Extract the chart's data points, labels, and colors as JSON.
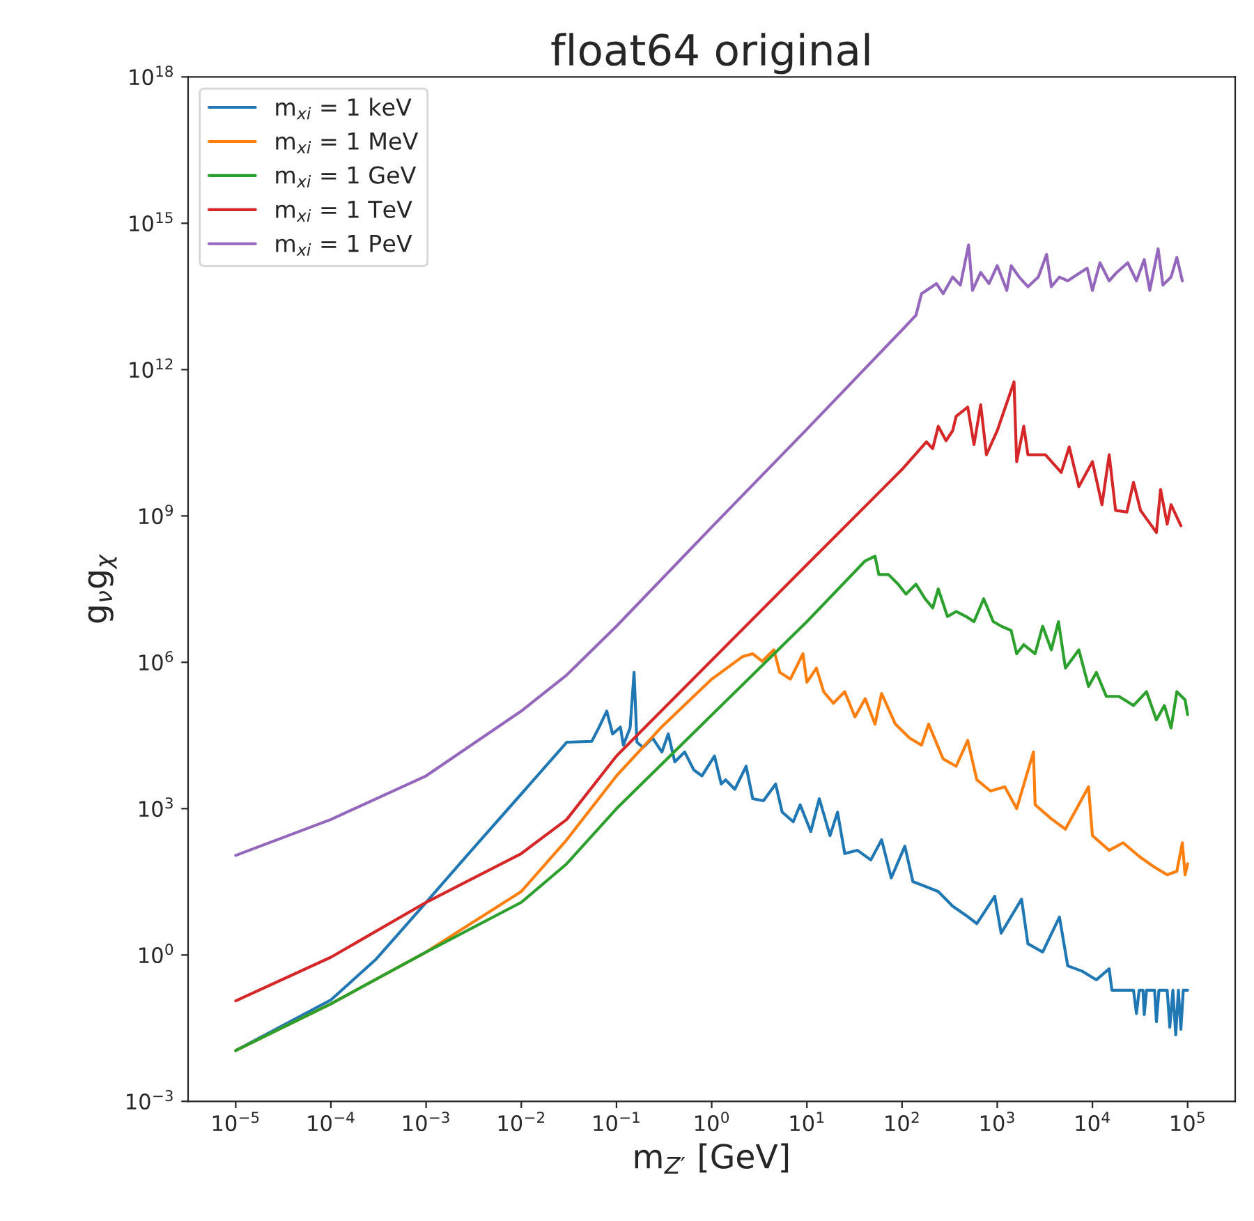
{
  "chart_data": {
    "type": "line",
    "title": "float64 original",
    "xlabel": "m$_{Z′}$ [GeV]",
    "ylabel": "g$_{ν}$g$_{χ}$",
    "log": "xy",
    "grid": false,
    "legend": "top left",
    "marker": "none",
    "line_style": "solid",
    "xlim": [
      3.16e-06,
      316000.0
    ],
    "ylim": [
      0.001,
      1e+18
    ],
    "xticks": [
      {
        "value": 1e-05,
        "label": "10$^{−5}$"
      },
      {
        "value": 0.0001,
        "label": "10$^{−4}$"
      },
      {
        "value": 0.001,
        "label": "10$^{−3}$"
      },
      {
        "value": 0.01,
        "label": "10$^{−2}$"
      },
      {
        "value": 0.1,
        "label": "10$^{−1}$"
      },
      {
        "value": 1,
        "label": "10$^{0}$"
      },
      {
        "value": 10,
        "label": "10$^{1}$"
      },
      {
        "value": 100,
        "label": "10$^{2}$"
      },
      {
        "value": 1000,
        "label": "10$^{3}$"
      },
      {
        "value": 10000,
        "label": "10$^{4}$"
      },
      {
        "value": 100000,
        "label": "10$^{5}$"
      }
    ],
    "yticks": [
      {
        "value": 0.001,
        "label": "10$^{−3}$"
      },
      {
        "value": 1,
        "label": "10$^{0}$"
      },
      {
        "value": 1000.0,
        "label": "10$^{3}$"
      },
      {
        "value": 1000000.0,
        "label": "10$^{6}$"
      },
      {
        "value": 1000000000.0,
        "label": "10$^{9}$"
      },
      {
        "value": 1000000000000.0,
        "label": "10$^{12}$"
      },
      {
        "value": 1000000000000000.0,
        "label": "10$^{15}$"
      },
      {
        "value": 1e+18,
        "label": "10$^{18}$"
      }
    ],
    "series": [
      {
        "name": "m$_{xi}$ = 1 keV",
        "color": "#1f77b4",
        "x": [
          1e-05,
          0.0001,
          0.0003,
          0.001,
          0.003,
          0.01,
          0.03,
          0.055,
          0.065,
          0.079,
          0.091,
          0.11,
          0.118,
          0.139,
          0.153,
          0.164,
          0.19,
          0.24,
          0.3,
          0.35,
          0.41,
          0.52,
          0.65,
          0.79,
          1.07,
          1.26,
          1.4,
          1.75,
          2.3,
          2.7,
          3.5,
          4.7,
          5.5,
          7.2,
          8.5,
          11,
          13.5,
          17.5,
          21,
          25,
          34,
          47,
          61,
          77,
          107,
          130,
          190,
          240,
          340,
          470,
          610,
          940,
          1100,
          1800,
          2100,
          3000,
          4500,
          5500,
          7900,
          11000,
          15000,
          16000,
          27000,
          29000,
          31000,
          34000,
          35000,
          37000,
          45000,
          47000,
          50000,
          61000,
          65000,
          70000,
          75000,
          80000,
          85000,
          90000,
          100000
        ],
        "values": [
          0.011,
          0.12,
          0.83,
          12,
          140,
          2000,
          23000,
          24000,
          45000,
          100000,
          34000,
          47000,
          20000,
          45000,
          620000,
          23000,
          18000,
          28000,
          14500,
          34000,
          9100,
          14500,
          6200,
          4700,
          12000,
          3200,
          3900,
          2500,
          7400,
          1600,
          1450,
          3200,
          850,
          540,
          1200,
          340,
          1600,
          280,
          850,
          120,
          140,
          89,
          230,
          38,
          170,
          32,
          24,
          20,
          10,
          6.5,
          4.4,
          16,
          2.8,
          14,
          1.7,
          1.15,
          6,
          0.6,
          0.46,
          0.31,
          0.52,
          0.19,
          0.19,
          0.063,
          0.19,
          0.19,
          0.06,
          0.19,
          0.19,
          0.043,
          0.19,
          0.19,
          0.033,
          0.19,
          0.023,
          0.19,
          0.03,
          0.19,
          0.19
        ]
      },
      {
        "name": "m$_{xi}$ = 1 MeV",
        "color": "#ff7f0e",
        "x": [
          1e-05,
          0.0001,
          0.001,
          0.01,
          0.03,
          0.1,
          0.3,
          1,
          2.1,
          2.7,
          3.4,
          4.5,
          5.2,
          6.7,
          9.1,
          10,
          12.6,
          15,
          19,
          25,
          32,
          41,
          52,
          61,
          85,
          120,
          160,
          190,
          270,
          370,
          490,
          610,
          850,
          1200,
          1600,
          2400,
          2500,
          3700,
          5200,
          9100,
          10000,
          15000,
          21000,
          32000,
          44000,
          61000,
          77000,
          88000,
          94000,
          100000
        ],
        "values": [
          0.011,
          0.1,
          1.15,
          20,
          230,
          4700,
          48000,
          450000,
          1300000,
          1500000,
          1050000,
          1800000,
          620000,
          450000,
          1500000,
          390000,
          760000,
          250000,
          145000,
          250000,
          76000,
          180000,
          54000,
          230000,
          54000,
          28000,
          20000,
          54000,
          10500,
          7400,
          25000,
          3900,
          2300,
          2800,
          1000,
          14500,
          1200,
          620,
          380,
          2800,
          280,
          140,
          200,
          100,
          65,
          44,
          52,
          200,
          44,
          74
        ]
      },
      {
        "name": "m$_{xi}$ = 1 GeV",
        "color": "#2ca02c",
        "x": [
          1e-05,
          0.0001,
          0.001,
          0.01,
          0.03,
          0.1,
          1,
          10,
          41,
          52,
          57,
          72,
          91,
          110,
          140,
          175,
          210,
          240,
          300,
          370,
          470,
          570,
          720,
          910,
          1100,
          1400,
          1600,
          1900,
          2500,
          3000,
          3700,
          4400,
          5200,
          7200,
          9100,
          11000,
          14000,
          19000,
          27000,
          37000,
          47000,
          57000,
          67000,
          77000,
          94000,
          100000
        ],
        "values": [
          0.011,
          0.1,
          1.15,
          12,
          74,
          1000,
          83000,
          6800000,
          120000000,
          150000000,
          63000000,
          63000000,
          40000000,
          25000000,
          40000000,
          20000000,
          13000000,
          32000000,
          8700000,
          11000000,
          8700000,
          6800000,
          20000000,
          6800000,
          5500000,
          4500000,
          1500000,
          2300000,
          1500000,
          5500000,
          1800000,
          6800000,
          760000,
          1800000,
          320000,
          620000,
          200000,
          200000,
          130000,
          250000,
          66000,
          130000,
          45000,
          250000,
          170000,
          85000
        ]
      },
      {
        "name": "m$_{xi}$ = 1 TeV",
        "color": "#d62728",
        "x": [
          1e-05,
          0.0001,
          0.001,
          0.01,
          0.03,
          0.1,
          1,
          10,
          100,
          180,
          210,
          240,
          290,
          340,
          370,
          490,
          570,
          670,
          770,
          1000,
          1500,
          1600,
          1900,
          2100,
          3200,
          4700,
          5700,
          7200,
          10000,
          12600,
          15000,
          17500,
          23000,
          27000,
          32000,
          47000,
          52000,
          61000,
          67000,
          85000
        ],
        "values": [
          0.115,
          0.9,
          12,
          120,
          600,
          12000,
          1100000,
          100000000,
          9000000000,
          33000000000,
          24000000000,
          69000000000,
          35000000000,
          56000000000,
          110000000000,
          170000000000,
          29000000000,
          190000000000,
          18000000000,
          56000000000,
          560000000000,
          13000000000,
          69000000000,
          18000000000,
          18000000000,
          7800000000,
          26000000000,
          4000000000,
          13000000000,
          1700000000,
          18000000000,
          1300000000,
          1200000000,
          4900000000,
          1300000000,
          460000000,
          3500000000,
          680000000,
          1700000000,
          630000000
        ]
      },
      {
        "name": "m$_{xi}$ = 1 PeV",
        "color": "#9467bd",
        "x": [
          1e-05,
          0.0001,
          0.001,
          0.01,
          0.03,
          0.1,
          1,
          10,
          100,
          140,
          160,
          230,
          270,
          340,
          410,
          500,
          550,
          670,
          820,
          1000,
          1260,
          1400,
          1700,
          2100,
          2700,
          3300,
          3700,
          4500,
          5500,
          6700,
          8800,
          10000,
          12000,
          15000,
          18000,
          23500,
          29000,
          35000,
          40000,
          49000,
          55000,
          67000,
          77000,
          88000
        ],
        "values": [
          110,
          600,
          4700,
          100000,
          550000,
          5500000,
          590000000,
          60000000000,
          6500000000000,
          13000000000000,
          36000000000000,
          58000000000000,
          36000000000000,
          79000000000000,
          54000000000000,
          360000000000000,
          42000000000000,
          98000000000000,
          58000000000000,
          135000000000000,
          42000000000000,
          135000000000000,
          79000000000000,
          50000000000000,
          79000000000000,
          230000000000000,
          50000000000000,
          79000000000000,
          66000000000000,
          85000000000000,
          120000000000000,
          42000000000000,
          155000000000000,
          66000000000000,
          98000000000000,
          155000000000000,
          66000000000000,
          180000000000000,
          42000000000000,
          300000000000000,
          54000000000000,
          79000000000000,
          200000000000000,
          66000000000000
        ]
      }
    ]
  }
}
